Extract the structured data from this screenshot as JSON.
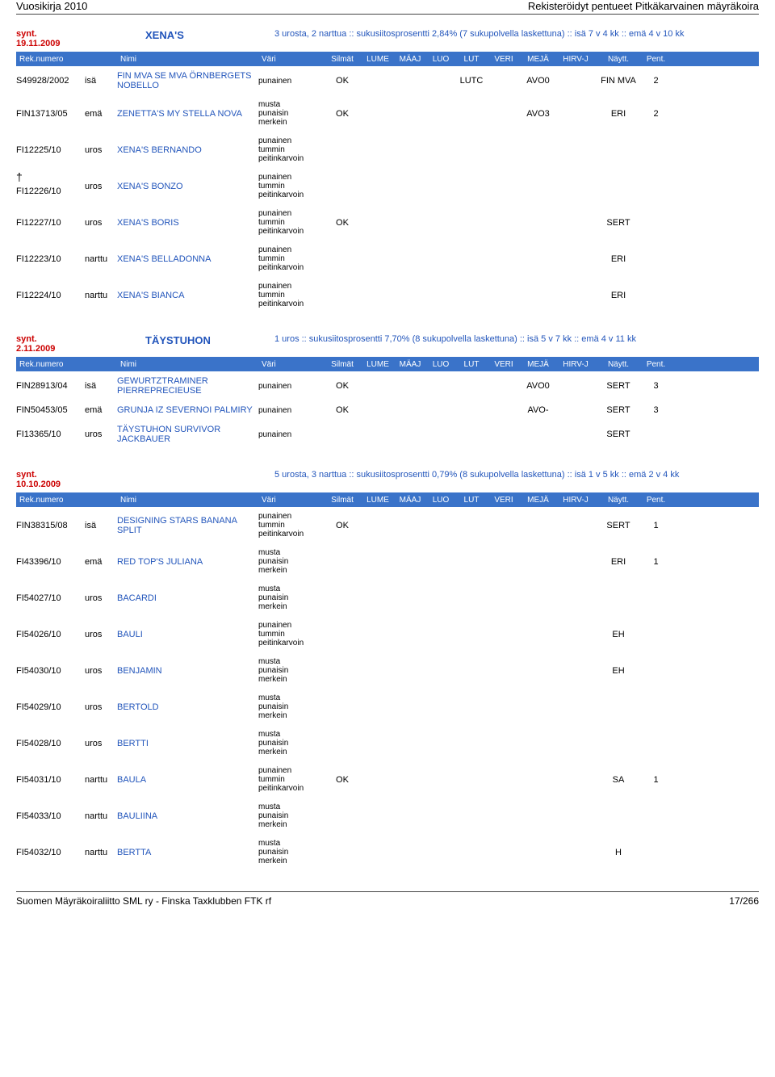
{
  "page": {
    "header_left": "Vuosikirja 2010",
    "header_right": "Rekisteröidyt pentueet Pitkäkarvainen mäyräkoira",
    "footer_left": "Suomen Mäyräkoiraliitto SML ry - Finska Taxklubben FTK rf",
    "footer_right": "17/266"
  },
  "columns": {
    "reg": "Rek.numero",
    "name": "Nimi",
    "color": "Väri",
    "eyes": "Silmät",
    "lume": "LUME",
    "maaj": "MÄAJ",
    "luo": "LUO",
    "lut": "LUT",
    "veri": "VERI",
    "meja": "MEJÄ",
    "hirv": "HIRV-J",
    "naytt": "Näytt.",
    "pent": "Pent."
  },
  "litters": [
    {
      "date_label": "synt.",
      "date": "19.11.2009",
      "title": "XENA'S",
      "desc": "3 urosta, 2 narttua  ::  sukusiitosprosentti 2,84% (7 sukupolvella laskettuna)  ::  isä 7 v 4 kk  ::  emä 4 v 10 kk",
      "rows": [
        {
          "reg": "S49928/2002",
          "role": "isä",
          "name": "FIN MVA SE MVA ÖRNBERGETS NOBELLO",
          "color": "punainen",
          "eyes": "OK",
          "lut": "LUTC",
          "meja": "AVO0",
          "naytt": "FIN MVA",
          "pent": "2"
        },
        {
          "reg": "FIN13713/05",
          "role": "emä",
          "name": "ZENETTA'S MY STELLA NOVA",
          "color": "musta punaisin merkein",
          "eyes": "OK",
          "meja": "AVO3",
          "naytt": "ERI",
          "pent": "2"
        },
        {
          "reg": "FI12225/10",
          "role": "uros",
          "name": "XENA'S BERNANDO",
          "color": "punainen tummin peitinkarvoin"
        },
        {
          "reg": "FI12226/10",
          "role": "uros",
          "name": "XENA'S BONZO",
          "dagger": "†",
          "color": "punainen tummin peitinkarvoin"
        },
        {
          "reg": "FI12227/10",
          "role": "uros",
          "name": "XENA'S BORIS",
          "color": "punainen tummin peitinkarvoin",
          "eyes": "OK",
          "naytt": "SERT"
        },
        {
          "reg": "FI12223/10",
          "role": "narttu",
          "name": "XENA'S BELLADONNA",
          "color": "punainen tummin peitinkarvoin",
          "naytt": "ERI"
        },
        {
          "reg": "FI12224/10",
          "role": "narttu",
          "name": "XENA'S BIANCA",
          "color": "punainen tummin peitinkarvoin",
          "naytt": "ERI"
        }
      ]
    },
    {
      "date_label": "synt.",
      "date": "2.11.2009",
      "title": "TÄYSTUHON",
      "desc": "1 uros  ::  sukusiitosprosentti 7,70% (8 sukupolvella laskettuna)  ::  isä 5 v 7 kk  ::  emä 4 v 11 kk",
      "rows": [
        {
          "reg": "FIN28913/04",
          "role": "isä",
          "name": "GEWURTZTRAMINER PIERREPRECIEUSE",
          "color": "punainen",
          "eyes": "OK",
          "meja": "AVO0",
          "naytt": "SERT",
          "pent": "3"
        },
        {
          "reg": "FIN50453/05",
          "role": "emä",
          "name": "GRUNJA IZ SEVERNOI PALMIRY",
          "color": "punainen",
          "eyes": "OK",
          "meja": "AVO-",
          "naytt": "SERT",
          "pent": "3"
        },
        {
          "reg": "FI13365/10",
          "role": "uros",
          "name": "TÄYSTUHON SURVIVOR JACKBAUER",
          "color": "punainen",
          "naytt": "SERT"
        }
      ]
    },
    {
      "date_label": "synt.",
      "date": "10.10.2009",
      "title": "",
      "desc": "5 urosta, 3 narttua  ::  sukusiitosprosentti 0,79% (8 sukupolvella laskettuna)  ::  isä 1 v 5 kk  ::  emä 2 v 4 kk",
      "rows": [
        {
          "reg": "FIN38315/08",
          "role": "isä",
          "name": "DESIGNING STARS BANANA SPLIT",
          "color": "punainen tummin peitinkarvoin",
          "eyes": "OK",
          "naytt": "SERT",
          "pent": "1"
        },
        {
          "reg": "FI43396/10",
          "role": "emä",
          "name": "RED TOP'S JULIANA",
          "color": "musta punaisin merkein",
          "naytt": "ERI",
          "pent": "1"
        },
        {
          "reg": "FI54027/10",
          "role": "uros",
          "name": "BACARDI",
          "color": "musta punaisin merkein"
        },
        {
          "reg": "FI54026/10",
          "role": "uros",
          "name": "BAULI",
          "color": "punainen tummin peitinkarvoin",
          "naytt": "EH"
        },
        {
          "reg": "FI54030/10",
          "role": "uros",
          "name": "BENJAMIN",
          "color": "musta punaisin merkein",
          "naytt": "EH"
        },
        {
          "reg": "FI54029/10",
          "role": "uros",
          "name": "BERTOLD",
          "color": "musta punaisin merkein"
        },
        {
          "reg": "FI54028/10",
          "role": "uros",
          "name": "BERTTI",
          "color": "musta punaisin merkein"
        },
        {
          "reg": "FI54031/10",
          "role": "narttu",
          "name": "BAULA",
          "color": "punainen tummin peitinkarvoin",
          "eyes": "OK",
          "naytt": "SA",
          "pent": "1"
        },
        {
          "reg": "FI54033/10",
          "role": "narttu",
          "name": "BAULIINA",
          "color": "musta punaisin merkein"
        },
        {
          "reg": "FI54032/10",
          "role": "narttu",
          "name": "BERTTA",
          "color": "musta punaisin merkein",
          "naytt": "H"
        }
      ]
    }
  ]
}
